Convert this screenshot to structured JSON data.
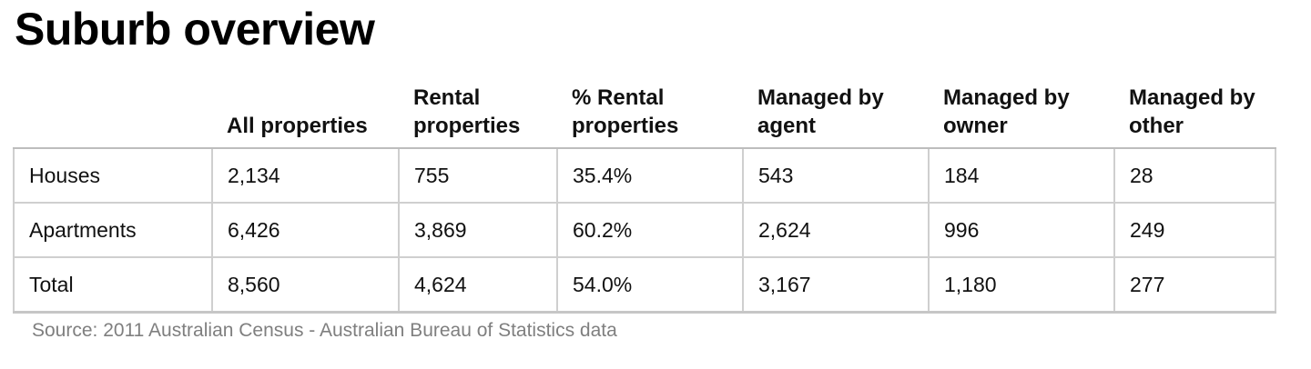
{
  "title": "Suburb overview",
  "source": "Source: 2011 Australian Census - Australian Bureau of Statistics data",
  "chart_data": {
    "type": "table",
    "title": "Suburb overview",
    "columns": [
      "",
      "All properties",
      "Rental properties",
      "% Rental properties",
      "Managed by agent",
      "Managed by owner",
      "Managed by other"
    ],
    "rows": [
      [
        "Houses",
        "2,134",
        "755",
        "35.4%",
        "543",
        "184",
        "28"
      ],
      [
        "Apartments",
        "6,426",
        "3,869",
        "60.2%",
        "2,624",
        "996",
        "249"
      ],
      [
        "Total",
        "8,560",
        "4,624",
        "54.0%",
        "3,167",
        "1,180",
        "277"
      ]
    ]
  }
}
